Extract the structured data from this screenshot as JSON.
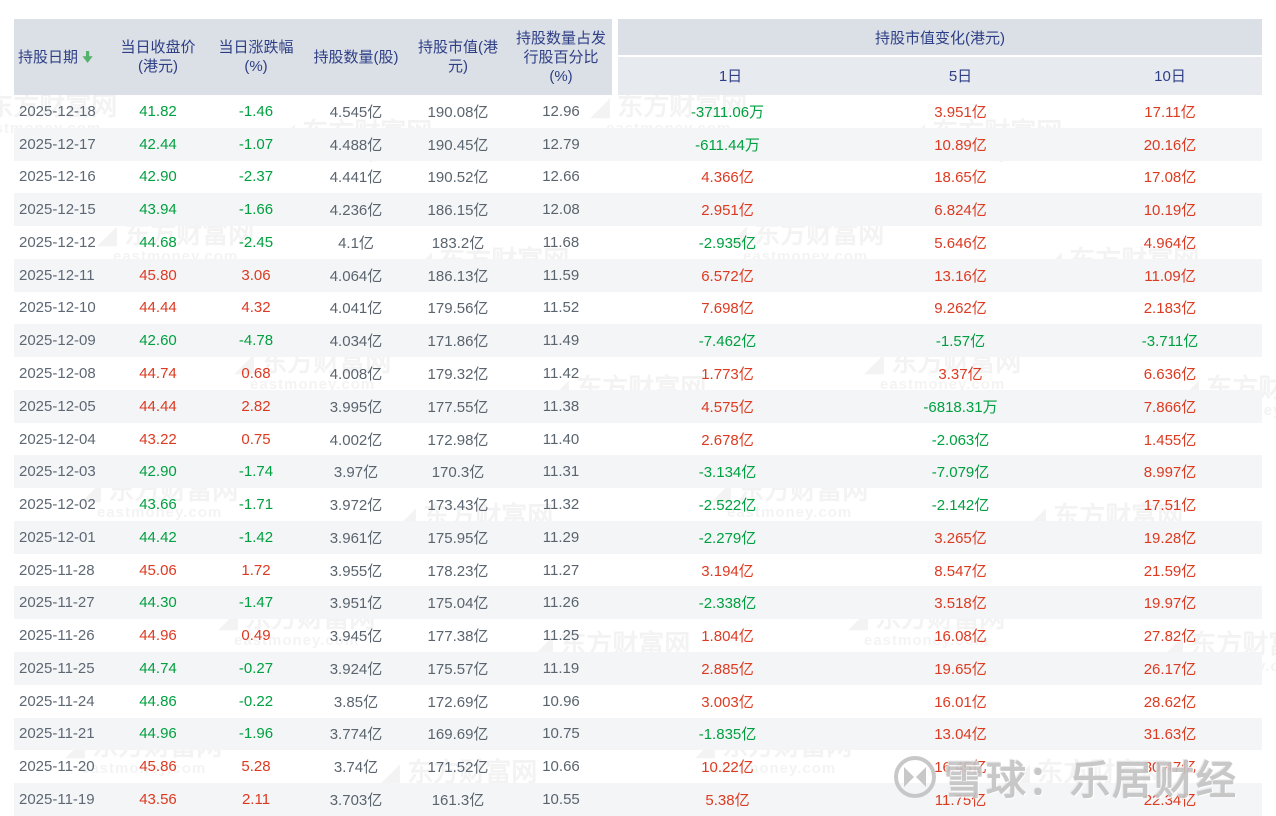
{
  "table": {
    "columns": [
      {
        "label": "持股日期"
      },
      {
        "label": "当日收盘价\n(港元)"
      },
      {
        "label": "当日涨跌幅\n(%)"
      },
      {
        "label": "持股数量(股)"
      },
      {
        "label": "持股市值(港\n元)"
      },
      {
        "label": "持股数量占发\n行股百分比\n(%)"
      }
    ],
    "group_header": {
      "label": "持股市值变化(港元)",
      "sub_columns": [
        "1日",
        "5日",
        "10日"
      ]
    },
    "sort": {
      "column": "持股日期",
      "direction": "descending"
    },
    "rows": [
      [
        "2025-12-18",
        "41.82",
        "-1.46",
        "4.545亿",
        "190.08亿",
        "12.96",
        "-3711.06万",
        "3.951亿",
        "17.11亿"
      ],
      [
        "2025-12-17",
        "42.44",
        "-1.07",
        "4.488亿",
        "190.45亿",
        "12.79",
        "-611.44万",
        "10.89亿",
        "20.16亿"
      ],
      [
        "2025-12-16",
        "42.90",
        "-2.37",
        "4.441亿",
        "190.52亿",
        "12.66",
        "4.366亿",
        "18.65亿",
        "17.08亿"
      ],
      [
        "2025-12-15",
        "43.94",
        "-1.66",
        "4.236亿",
        "186.15亿",
        "12.08",
        "2.951亿",
        "6.824亿",
        "10.19亿"
      ],
      [
        "2025-12-12",
        "44.68",
        "-2.45",
        "4.1亿",
        "183.2亿",
        "11.68",
        "-2.935亿",
        "5.646亿",
        "4.964亿"
      ],
      [
        "2025-12-11",
        "45.80",
        "3.06",
        "4.064亿",
        "186.13亿",
        "11.59",
        "6.572亿",
        "13.16亿",
        "11.09亿"
      ],
      [
        "2025-12-10",
        "44.44",
        "4.32",
        "4.041亿",
        "179.56亿",
        "11.52",
        "7.698亿",
        "9.262亿",
        "2.183亿"
      ],
      [
        "2025-12-09",
        "42.60",
        "-4.78",
        "4.034亿",
        "171.86亿",
        "11.49",
        "-7.462亿",
        "-1.57亿",
        "-3.711亿"
      ],
      [
        "2025-12-08",
        "44.74",
        "0.68",
        "4.008亿",
        "179.32亿",
        "11.42",
        "1.773亿",
        "3.37亿",
        "6.636亿"
      ],
      [
        "2025-12-05",
        "44.44",
        "2.82",
        "3.995亿",
        "177.55亿",
        "11.38",
        "4.575亿",
        "-6818.31万",
        "7.866亿"
      ],
      [
        "2025-12-04",
        "43.22",
        "0.75",
        "4.002亿",
        "172.98亿",
        "11.40",
        "2.678亿",
        "-2.063亿",
        "1.455亿"
      ],
      [
        "2025-12-03",
        "42.90",
        "-1.74",
        "3.97亿",
        "170.3亿",
        "11.31",
        "-3.134亿",
        "-7.079亿",
        "8.997亿"
      ],
      [
        "2025-12-02",
        "43.66",
        "-1.71",
        "3.972亿",
        "173.43亿",
        "11.32",
        "-2.522亿",
        "-2.142亿",
        "17.51亿"
      ],
      [
        "2025-12-01",
        "44.42",
        "-1.42",
        "3.961亿",
        "175.95亿",
        "11.29",
        "-2.279亿",
        "3.265亿",
        "19.28亿"
      ],
      [
        "2025-11-28",
        "45.06",
        "1.72",
        "3.955亿",
        "178.23亿",
        "11.27",
        "3.194亿",
        "8.547亿",
        "21.59亿"
      ],
      [
        "2025-11-27",
        "44.30",
        "-1.47",
        "3.951亿",
        "175.04亿",
        "11.26",
        "-2.338亿",
        "3.518亿",
        "19.97亿"
      ],
      [
        "2025-11-26",
        "44.96",
        "0.49",
        "3.945亿",
        "177.38亿",
        "11.25",
        "1.804亿",
        "16.08亿",
        "27.82亿"
      ],
      [
        "2025-11-25",
        "44.74",
        "-0.27",
        "3.924亿",
        "175.57亿",
        "11.19",
        "2.885亿",
        "19.65亿",
        "26.17亿"
      ],
      [
        "2025-11-24",
        "44.86",
        "-0.22",
        "3.85亿",
        "172.69亿",
        "10.96",
        "3.003亿",
        "16.01亿",
        "28.62亿"
      ],
      [
        "2025-11-21",
        "44.96",
        "-1.96",
        "3.774亿",
        "169.69亿",
        "10.75",
        "-1.835亿",
        "13.04亿",
        "31.63亿"
      ],
      [
        "2025-11-20",
        "45.86",
        "5.28",
        "3.74亿",
        "171.52亿",
        "10.66",
        "10.22亿",
        "16.45亿",
        "30.47亿"
      ],
      [
        "2025-11-19",
        "43.56",
        "2.11",
        "3.703亿",
        "161.3亿",
        "10.55",
        "5.38亿",
        "11.75亿",
        "22.34亿"
      ]
    ]
  },
  "colors": {
    "up": "#dc3a21",
    "down": "#00a040",
    "header_text": "#2e3e86",
    "header_bg": "#dbe0e6",
    "subheader_bg": "#e7ebf0",
    "stripe_bg": "#f4f5f7",
    "sort_arrow": "#55b26d"
  },
  "watermarks": {
    "brand": "东方财富网",
    "domain_text": "eastmoney.com",
    "footer": "雪球：乐居财经"
  }
}
